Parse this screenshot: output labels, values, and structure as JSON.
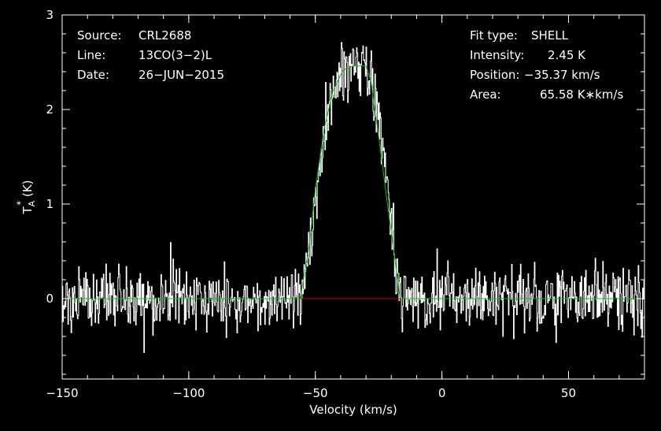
{
  "info_left": [
    {
      "label": "Source:",
      "value": "CRL2688"
    },
    {
      "label": "Line:",
      "value": "13CO(3−2)L"
    },
    {
      "label": "Date:",
      "value": "26−JUN−2015"
    }
  ],
  "info_right": [
    {
      "label": "Fit type:",
      "value": "SHELL"
    },
    {
      "label": "Intensity:",
      "value": "2.45 K"
    },
    {
      "label": "Position:",
      "value": "−35.37 km/s"
    },
    {
      "label": "Area:",
      "value": "65.58 K∗km/s"
    }
  ],
  "colors": {
    "background": "#000000",
    "spectrum": "#ffffff",
    "fit": "#00c800",
    "baseline": "#d00000",
    "axes": "#ffffff"
  },
  "chart_data": {
    "type": "line",
    "title": "",
    "xlabel": "Velocity (km/s)",
    "ylabel_main": "T",
    "ylabel_super": "*",
    "ylabel_sub": "A",
    "ylabel_unit": " (K)",
    "xlim": [
      -150,
      80
    ],
    "ylim": [
      -0.85,
      3.0
    ],
    "x_ticks": [
      -150,
      -100,
      -50,
      0,
      50
    ],
    "x_tick_labels": [
      "−150",
      "−100",
      "−50",
      "0",
      "50"
    ],
    "y_ticks": [
      0,
      1,
      2,
      3
    ],
    "y_tick_labels": [
      "0",
      "1",
      "2",
      "3"
    ],
    "x_minor_step": 10,
    "y_minor_step": 0.2,
    "grid": false,
    "series": [
      {
        "kind": "spectrum",
        "noise_rms": 0.16,
        "x_step": 0.25,
        "profile": [
          [
            -150,
            0.0
          ],
          [
            -56,
            0.0
          ],
          [
            -52,
            0.6
          ],
          [
            -45,
            2.0
          ],
          [
            -40,
            2.4
          ],
          [
            -32,
            2.45
          ],
          [
            -28,
            2.35
          ],
          [
            -24,
            1.7
          ],
          [
            -19,
            0.6
          ],
          [
            -16,
            0.0
          ],
          [
            80,
            0.0
          ]
        ]
      },
      {
        "kind": "fit",
        "x": [
          -150,
          -56,
          -52.5,
          -50,
          -46.5,
          -43,
          -39,
          -35,
          -30,
          -28,
          -25,
          -22,
          -19,
          -16.5,
          80
        ],
        "y": [
          0,
          0,
          0.55,
          1.15,
          1.8,
          2.2,
          2.42,
          2.46,
          2.46,
          2.3,
          1.72,
          1.1,
          0.5,
          0,
          0
        ]
      },
      {
        "kind": "baseline",
        "x": [
          -56,
          -16.5
        ],
        "y": [
          0,
          0
        ]
      }
    ]
  }
}
